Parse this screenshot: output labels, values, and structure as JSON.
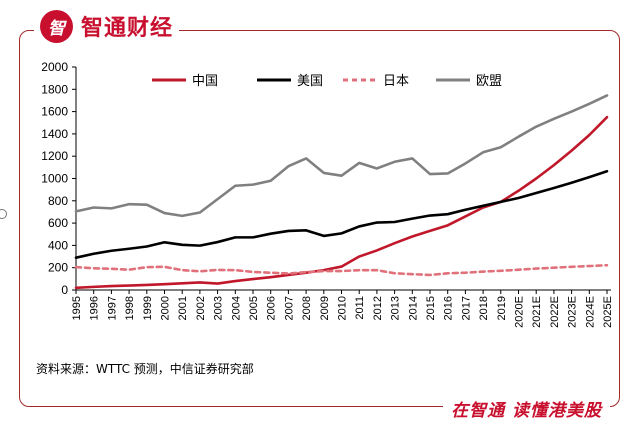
{
  "brand": {
    "logo_glyph": "智",
    "name": "智通财经",
    "slogan": "在智通  读懂港美股",
    "color": "#c8102e"
  },
  "source": "资料来源：WTTC 预测，中信证券研究部",
  "chart_data": {
    "type": "line",
    "title": "",
    "xlabel": "",
    "ylabel": "",
    "ylim": [
      0,
      2000
    ],
    "yticks": [
      0,
      200,
      400,
      600,
      800,
      1000,
      1200,
      1400,
      1600,
      1800,
      2000
    ],
    "grid": false,
    "legend_position": "top",
    "categories": [
      "1995",
      "1996",
      "1997",
      "1998",
      "1999",
      "2000",
      "2001",
      "2002",
      "2003",
      "2004",
      "2005",
      "2006",
      "2007",
      "2008",
      "2009",
      "2010",
      "2011",
      "2012",
      "2013",
      "2014",
      "2015",
      "2016",
      "2017",
      "2018",
      "2019",
      "2020E",
      "2021E",
      "2022E",
      "2023E",
      "2024E",
      "2025E"
    ],
    "series": [
      {
        "name": "中国",
        "color": "#c0182a",
        "dash": "solid",
        "values": [
          20,
          28,
          35,
          40,
          45,
          52,
          60,
          68,
          58,
          80,
          98,
          115,
          135,
          155,
          178,
          210,
          300,
          355,
          420,
          480,
          530,
          580,
          660,
          740,
          790,
          890,
          1000,
          1120,
          1250,
          1390,
          1550
        ]
      },
      {
        "name": "美国",
        "color": "#000000",
        "dash": "solid",
        "values": [
          290,
          325,
          352,
          370,
          390,
          428,
          405,
          398,
          430,
          472,
          472,
          505,
          530,
          535,
          485,
          508,
          570,
          605,
          610,
          640,
          668,
          680,
          720,
          755,
          790,
          825,
          870,
          915,
          962,
          1012,
          1065
        ]
      },
      {
        "name": "日本",
        "color": "#e0707a",
        "dash": "dashed",
        "values": [
          205,
          195,
          190,
          182,
          205,
          208,
          178,
          168,
          180,
          178,
          162,
          155,
          148,
          160,
          170,
          170,
          178,
          178,
          150,
          142,
          135,
          150,
          155,
          165,
          172,
          182,
          192,
          200,
          208,
          215,
          222
        ]
      },
      {
        "name": "欧盟",
        "color": "#808080",
        "dash": "solid",
        "values": [
          705,
          740,
          732,
          770,
          765,
          690,
          665,
          695,
          815,
          935,
          945,
          980,
          1110,
          1180,
          1050,
          1025,
          1140,
          1090,
          1150,
          1180,
          1040,
          1045,
          1135,
          1235,
          1280,
          1375,
          1465,
          1535,
          1600,
          1670,
          1745
        ]
      }
    ]
  }
}
